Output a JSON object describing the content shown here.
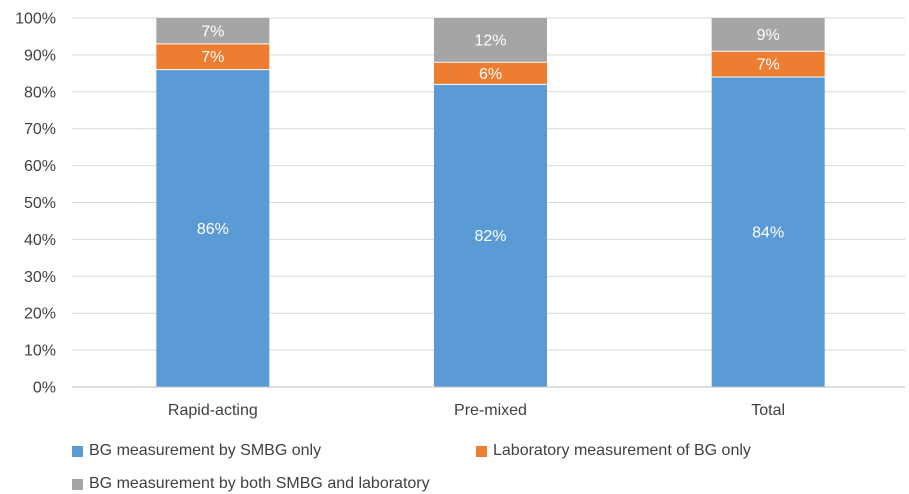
{
  "chart_data": {
    "type": "bar",
    "stacked": true,
    "categories": [
      "Rapid-acting",
      "Pre-mixed",
      "Total"
    ],
    "series": [
      {
        "name": "BG measurement by SMBG only",
        "values": [
          86,
          82,
          84
        ],
        "labels": [
          "86%",
          "82%",
          "84%"
        ],
        "color": "#5b9bd5"
      },
      {
        "name": "Laboratory measurement of BG only",
        "values": [
          7,
          6,
          7
        ],
        "labels": [
          "7%",
          "6%",
          "7%"
        ],
        "color": "#ed7d31"
      },
      {
        "name": "BG measurement by both SMBG and laboratory",
        "values": [
          7,
          12,
          9
        ],
        "labels": [
          "7%",
          "12%",
          "9%"
        ],
        "color": "#a5a5a5"
      }
    ],
    "ylim": [
      0,
      100
    ],
    "yticks": [
      "0%",
      "10%",
      "20%",
      "30%",
      "40%",
      "50%",
      "60%",
      "70%",
      "80%",
      "90%",
      "100%"
    ],
    "grid": true,
    "legend_position": "bottom",
    "label_color": "#ffffff",
    "axis_text_color": "#404040",
    "grid_color": "#d9d9d9"
  }
}
